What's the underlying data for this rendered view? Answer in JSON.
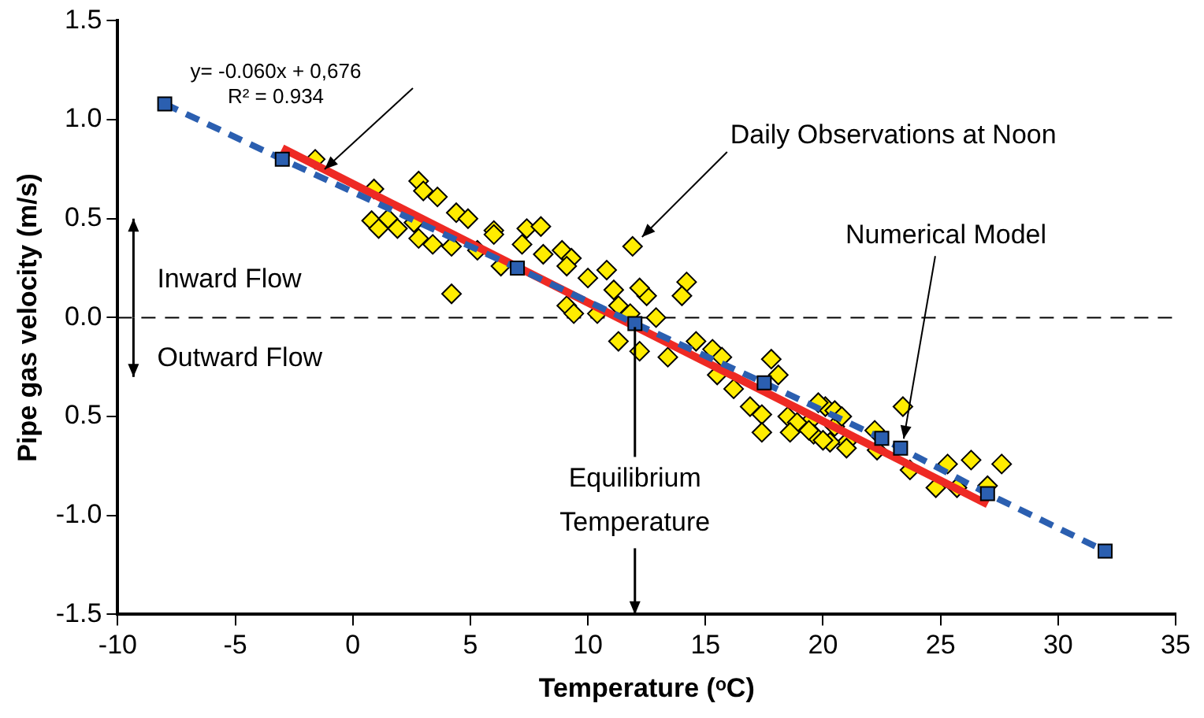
{
  "chart_data": {
    "type": "scatter",
    "xlabel": "Temperature (ᵒC)",
    "ylabel": "Pipe gas velocity (m/s)",
    "xlim": [
      -10,
      35
    ],
    "xticks": [
      -10,
      -5,
      0,
      5,
      10,
      15,
      20,
      25,
      30,
      35
    ],
    "ylim": [
      -1.5,
      1.5
    ],
    "yticks": [
      {
        "value": 1.5,
        "label": "1.5"
      },
      {
        "value": 1,
        "label": "1.0"
      },
      {
        "value": 0.5,
        "label": "0.5"
      },
      {
        "value": 0,
        "label": "0.0"
      },
      {
        "value": -0.5,
        "label": "0.5"
      },
      {
        "value": -1,
        "label": "-1.0"
      },
      {
        "value": -1.5,
        "label": "-1.5"
      }
    ],
    "grid": false,
    "legend": false,
    "series": [
      {
        "type": "scatter",
        "marker": "diamond",
        "color": "#ffec00",
        "x": [
          -1.6,
          0.9,
          2.8,
          3.6,
          3.0,
          0.8,
          1.5,
          1.9,
          2.6,
          4.4,
          4.9,
          2.8,
          3.4,
          4.2,
          5.3,
          6.0,
          4.2,
          1.1,
          6.0,
          7.4,
          8.0,
          7.2,
          8.1,
          6.3,
          8.9,
          9.3,
          9.1,
          10.0,
          10.8,
          11.1,
          11.9,
          9.1,
          9.4,
          10.4,
          11.3,
          12.5,
          12.2,
          14.2,
          14.0,
          11.8,
          12.9,
          11.3,
          12.2,
          13.4,
          14.6,
          15.3,
          15.7,
          15.5,
          16.2,
          17.8,
          18.1,
          16.9,
          17.4,
          17.4,
          18.5,
          19.4,
          20.1,
          19.6,
          20.5,
          21.0,
          20.3,
          19.8,
          20.5,
          20.8,
          18.9,
          18.6,
          19.4,
          20.0,
          21.0,
          22.2,
          22.3,
          23.4,
          23.7,
          25.3,
          26.3,
          27.6,
          24.8,
          25.7,
          27.0
        ],
        "values": [
          0.8,
          0.65,
          0.69,
          0.61,
          0.64,
          0.49,
          0.5,
          0.45,
          0.48,
          0.53,
          0.5,
          0.4,
          0.37,
          0.36,
          0.34,
          0.44,
          0.12,
          0.45,
          0.42,
          0.45,
          0.46,
          0.37,
          0.32,
          0.26,
          0.34,
          0.3,
          0.26,
          0.2,
          0.24,
          0.14,
          0.36,
          0.06,
          0.02,
          0.02,
          0.06,
          0.11,
          0.15,
          0.18,
          0.11,
          0.02,
          0.0,
          -0.12,
          -0.17,
          -0.2,
          -0.12,
          -0.16,
          -0.2,
          -0.29,
          -0.36,
          -0.21,
          -0.29,
          -0.45,
          -0.49,
          -0.58,
          -0.5,
          -0.53,
          -0.45,
          -0.59,
          -0.55,
          -0.63,
          -0.63,
          -0.43,
          -0.47,
          -0.5,
          -0.53,
          -0.58,
          -0.57,
          -0.62,
          -0.66,
          -0.57,
          -0.67,
          -0.45,
          -0.77,
          -0.74,
          -0.72,
          -0.74,
          -0.86,
          -0.86,
          -0.85
        ]
      },
      {
        "type": "line",
        "marker": "square",
        "line_style": "dashed",
        "color": "#2b5fb0",
        "x": [
          -8,
          -3,
          7,
          12,
          17.5,
          22.5,
          23.3,
          27,
          32
        ],
        "values": [
          1.08,
          0.8,
          0.25,
          -0.03,
          -0.33,
          -0.61,
          -0.66,
          -0.89,
          -1.18
        ]
      },
      {
        "type": "line",
        "marker": "none",
        "line_style": "solid",
        "color": "#ee2a24",
        "x": [
          -3,
          27
        ],
        "values": [
          0.856,
          -0.944
        ]
      }
    ],
    "ref_lines": [
      {
        "axis": "y",
        "value": 0,
        "color": "#000000",
        "line_style": "dashed"
      }
    ],
    "annotations": [
      "y= -0.060x + 0,676",
      "R² = 0.934",
      {
        "text": "Daily Observations at Noon",
        "x": 11.9,
        "y": 0.36
      },
      {
        "text": "Numerical Model",
        "x": 23.3,
        "y": -0.66
      },
      "Inward Flow",
      "Outward Flow",
      {
        "text": "Equilibrium Temperature",
        "x": 12,
        "y": 0
      }
    ]
  }
}
